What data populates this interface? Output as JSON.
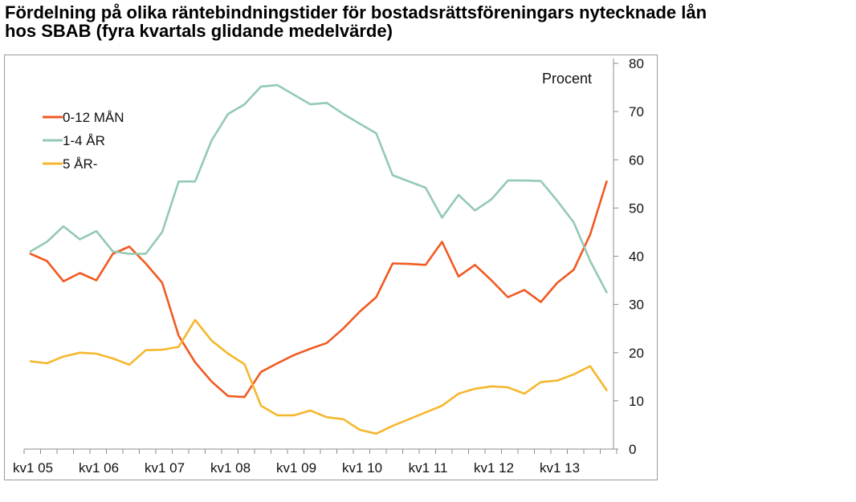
{
  "title_line1": "Fördelning på olika räntebindningstider för bostadsrättsföreningars nytecknade lån",
  "title_line2": "hos SBAB (fyra kvartals glidande medelvärde)",
  "chart_data": {
    "type": "line",
    "title": "Fördelning på olika räntebindningstider för bostadsrättsföreningars nytecknade lån hos SBAB (fyra kvartals glidande medelvärde)",
    "ylabel": "Procent",
    "xlabel": "",
    "y_axis_side": "right",
    "ylim": [
      0,
      80
    ],
    "yticks": [
      "0",
      "10",
      "20",
      "30",
      "40",
      "50",
      "60",
      "70",
      "80"
    ],
    "xtick_labels": [
      "kv1 05",
      "kv1 06",
      "kv1 07",
      "kv1 08",
      "kv1 09",
      "kv1 10",
      "kv1 11",
      "kv1 12",
      "kv1 13"
    ],
    "legend_position": "top-left",
    "grid": false,
    "series": [
      {
        "name": "0-12 MÅN",
        "color": "#f05a22",
        "values": [
          40.5,
          39,
          34.8,
          36.5,
          35,
          40.5,
          42,
          38.5,
          34.5,
          23.5,
          18,
          14,
          11,
          10.8,
          16,
          17.8,
          19.5,
          20.8,
          22,
          25,
          28.5,
          31.5,
          38.5,
          38.4,
          38.2,
          43,
          35.8,
          38.2,
          35,
          31.5,
          33,
          30.5,
          34.5,
          37.2,
          44.5,
          55.5
        ]
      },
      {
        "name": "1-4 ÅR",
        "color": "#94c9b3",
        "values": [
          41,
          43,
          46.2,
          43.5,
          45.2,
          41,
          40.5,
          40.5,
          45,
          55.5,
          55.5,
          64,
          69.5,
          71.5,
          75.2,
          75.5,
          73.5,
          71.5,
          71.8,
          69.5,
          67.5,
          65.5,
          56.8,
          55.5,
          54.2,
          48,
          52.7,
          49.5,
          51.8,
          55.7,
          55.7,
          55.6,
          51.5,
          47,
          39,
          32.5
        ]
      },
      {
        "name": "5 ÅR-",
        "color": "#f5b72e",
        "values": [
          18.2,
          17.8,
          19.2,
          20,
          19.8,
          18.8,
          17.5,
          20.5,
          20.6,
          21.2,
          26.8,
          22.5,
          19.8,
          17.6,
          9,
          7,
          7,
          8,
          6.6,
          6.2,
          4,
          3.2,
          4.8,
          6.2,
          7.6,
          9,
          11.5,
          12.5,
          13,
          12.8,
          11.5,
          13.9,
          14.2,
          15.5,
          17.2,
          12.2
        ]
      }
    ]
  }
}
